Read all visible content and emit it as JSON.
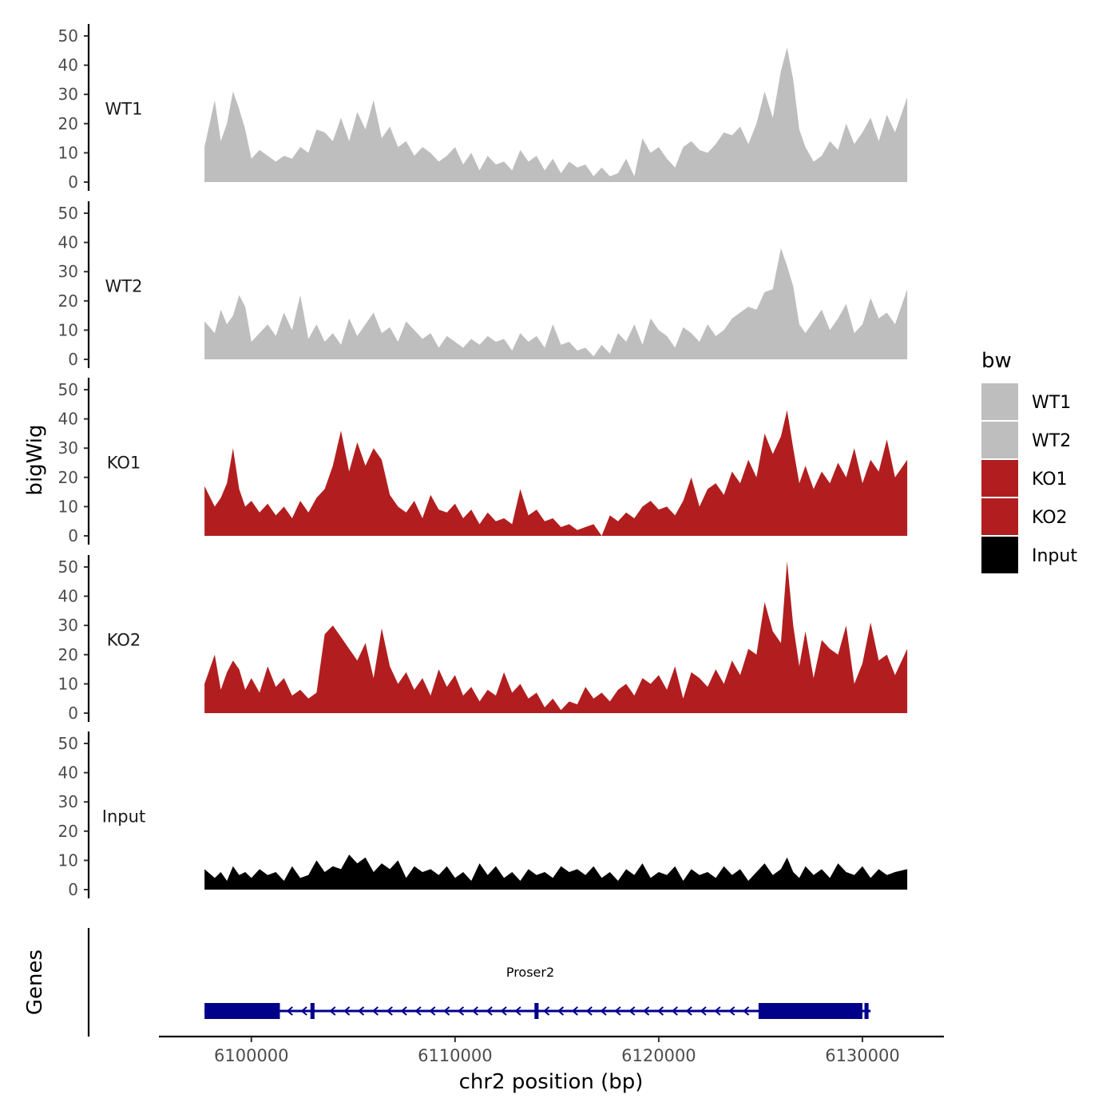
{
  "chart_data": {
    "type": "area",
    "title": "",
    "xlabel": "chr2 position (bp)",
    "ylabel": "bigWig",
    "genes_label": "Genes",
    "xlim": [
      6095500,
      6134000
    ],
    "x_ticks": [
      6100000,
      6110000,
      6120000,
      6130000
    ],
    "x_tick_labels": [
      "6100000",
      "6110000",
      "6120000",
      "6130000"
    ],
    "ylim": [
      0,
      53
    ],
    "y_ticks": [
      0,
      10,
      20,
      30,
      40,
      50
    ],
    "y_tick_labels": [
      "0",
      "10",
      "20",
      "30",
      "40",
      "50"
    ],
    "grid": false,
    "legend": {
      "title": "bw",
      "placement": "right",
      "entries": [
        {
          "label": "WT1",
          "color": "#bebebe"
        },
        {
          "label": "WT2",
          "color": "#bebebe"
        },
        {
          "label": "KO1",
          "color": "#b21e1f"
        },
        {
          "label": "KO2",
          "color": "#b21e1f"
        },
        {
          "label": "Input",
          "color": "#000000"
        }
      ]
    },
    "series": [
      {
        "name": "WT1",
        "color": "#bebebe",
        "x": [
          6097700,
          6098200,
          6098500,
          6098800,
          6099100,
          6099400,
          6099700,
          6100000,
          6100400,
          6100800,
          6101200,
          6101600,
          6102000,
          6102400,
          6102800,
          6103200,
          6103600,
          6104000,
          6104400,
          6104800,
          6105200,
          6105600,
          6106000,
          6106400,
          6106800,
          6107200,
          6107600,
          6108000,
          6108400,
          6108800,
          6109200,
          6109600,
          6110000,
          6110400,
          6110800,
          6111200,
          6111600,
          6112000,
          6112400,
          6112800,
          6113200,
          6113600,
          6114000,
          6114400,
          6114800,
          6115200,
          6115600,
          6116000,
          6116400,
          6116800,
          6117200,
          6117600,
          6118000,
          6118400,
          6118800,
          6119200,
          6119600,
          6120000,
          6120400,
          6120800,
          6121200,
          6121600,
          6122000,
          6122400,
          6122800,
          6123200,
          6123600,
          6124000,
          6124400,
          6124800,
          6125200,
          6125600,
          6126000,
          6126300,
          6126600,
          6126900,
          6127200,
          6127600,
          6128000,
          6128400,
          6128800,
          6129200,
          6129600,
          6130000,
          6130400,
          6130800,
          6131200,
          6131600,
          6132200
        ],
        "values": [
          12,
          28,
          14,
          20,
          31,
          25,
          18,
          8,
          11,
          9,
          7,
          9,
          8,
          12,
          10,
          18,
          17,
          14,
          22,
          14,
          24,
          18,
          28,
          15,
          19,
          12,
          14,
          9,
          12,
          10,
          7,
          9,
          12,
          6,
          10,
          4,
          9,
          6,
          7,
          4,
          11,
          7,
          9,
          4,
          8,
          3,
          7,
          5,
          6,
          2,
          5,
          2,
          3,
          8,
          2,
          15,
          10,
          12,
          8,
          5,
          12,
          14,
          11,
          10,
          13,
          17,
          16,
          19,
          13,
          20,
          31,
          22,
          38,
          46,
          35,
          18,
          12,
          7,
          9,
          14,
          11,
          20,
          13,
          17,
          22,
          14,
          23,
          17,
          29
        ]
      },
      {
        "name": "WT2",
        "color": "#bebebe",
        "x": [
          6097700,
          6098200,
          6098500,
          6098800,
          6099100,
          6099400,
          6099700,
          6100000,
          6100400,
          6100800,
          6101200,
          6101600,
          6102000,
          6102400,
          6102800,
          6103200,
          6103600,
          6104000,
          6104400,
          6104800,
          6105200,
          6105600,
          6106000,
          6106400,
          6106800,
          6107200,
          6107600,
          6108000,
          6108400,
          6108800,
          6109200,
          6109600,
          6110000,
          6110400,
          6110800,
          6111200,
          6111600,
          6112000,
          6112400,
          6112800,
          6113200,
          6113600,
          6114000,
          6114400,
          6114800,
          6115200,
          6115600,
          6116000,
          6116400,
          6116800,
          6117200,
          6117600,
          6118000,
          6118400,
          6118800,
          6119200,
          6119600,
          6120000,
          6120400,
          6120800,
          6121200,
          6121600,
          6122000,
          6122400,
          6122800,
          6123200,
          6123600,
          6124000,
          6124400,
          6124800,
          6125200,
          6125600,
          6126000,
          6126300,
          6126600,
          6126900,
          6127200,
          6127600,
          6128000,
          6128400,
          6128800,
          6129200,
          6129600,
          6130000,
          6130400,
          6130800,
          6131200,
          6131600,
          6132200
        ],
        "values": [
          13,
          9,
          17,
          12,
          15,
          22,
          18,
          6,
          9,
          12,
          8,
          16,
          10,
          22,
          7,
          12,
          6,
          9,
          5,
          14,
          8,
          12,
          16,
          9,
          11,
          6,
          13,
          10,
          7,
          9,
          4,
          8,
          6,
          4,
          7,
          5,
          8,
          6,
          7,
          3,
          9,
          6,
          8,
          4,
          12,
          5,
          6,
          3,
          4,
          1,
          5,
          2,
          9,
          6,
          12,
          5,
          14,
          10,
          8,
          4,
          11,
          9,
          6,
          12,
          8,
          10,
          14,
          16,
          18,
          17,
          23,
          24,
          38,
          32,
          25,
          12,
          9,
          13,
          17,
          10,
          14,
          19,
          9,
          12,
          21,
          14,
          16,
          12,
          24
        ]
      },
      {
        "name": "KO1",
        "color": "#b21e1f",
        "x": [
          6097700,
          6098200,
          6098500,
          6098800,
          6099100,
          6099400,
          6099700,
          6100000,
          6100400,
          6100800,
          6101200,
          6101600,
          6102000,
          6102400,
          6102800,
          6103200,
          6103600,
          6104000,
          6104400,
          6104800,
          6105200,
          6105600,
          6106000,
          6106400,
          6106800,
          6107200,
          6107600,
          6108000,
          6108400,
          6108800,
          6109200,
          6109600,
          6110000,
          6110400,
          6110800,
          6111200,
          6111600,
          6112000,
          6112400,
          6112800,
          6113200,
          6113600,
          6114000,
          6114400,
          6114800,
          6115200,
          6115600,
          6116000,
          6116400,
          6116800,
          6117200,
          6117600,
          6118000,
          6118400,
          6118800,
          6119200,
          6119600,
          6120000,
          6120400,
          6120800,
          6121200,
          6121600,
          6122000,
          6122400,
          6122800,
          6123200,
          6123600,
          6124000,
          6124400,
          6124800,
          6125200,
          6125600,
          6126000,
          6126300,
          6126600,
          6126900,
          6127200,
          6127600,
          6128000,
          6128400,
          6128800,
          6129200,
          6129600,
          6130000,
          6130400,
          6130800,
          6131200,
          6131600,
          6132200
        ],
        "values": [
          17,
          10,
          13,
          18,
          30,
          16,
          10,
          12,
          8,
          11,
          7,
          10,
          6,
          12,
          8,
          13,
          16,
          24,
          36,
          22,
          32,
          24,
          30,
          26,
          14,
          10,
          8,
          12,
          6,
          14,
          9,
          8,
          11,
          6,
          9,
          4,
          8,
          5,
          6,
          4,
          16,
          7,
          9,
          5,
          6,
          3,
          4,
          2,
          3,
          4,
          0,
          7,
          5,
          8,
          6,
          10,
          12,
          9,
          10,
          7,
          12,
          20,
          10,
          16,
          18,
          14,
          22,
          18,
          26,
          20,
          35,
          28,
          34,
          43,
          30,
          18,
          24,
          16,
          22,
          18,
          25,
          20,
          30,
          18,
          26,
          22,
          33,
          20,
          26
        ]
      },
      {
        "name": "KO2",
        "color": "#b21e1f",
        "x": [
          6097700,
          6098200,
          6098500,
          6098800,
          6099100,
          6099400,
          6099700,
          6100000,
          6100400,
          6100800,
          6101200,
          6101600,
          6102000,
          6102400,
          6102800,
          6103200,
          6103600,
          6104000,
          6104400,
          6104800,
          6105200,
          6105600,
          6106000,
          6106400,
          6106800,
          6107200,
          6107600,
          6108000,
          6108400,
          6108800,
          6109200,
          6109600,
          6110000,
          6110400,
          6110800,
          6111200,
          6111600,
          6112000,
          6112400,
          6112800,
          6113200,
          6113600,
          6114000,
          6114400,
          6114800,
          6115200,
          6115600,
          6116000,
          6116400,
          6116800,
          6117200,
          6117600,
          6118000,
          6118400,
          6118800,
          6119200,
          6119600,
          6120000,
          6120400,
          6120800,
          6121200,
          6121600,
          6122000,
          6122400,
          6122800,
          6123200,
          6123600,
          6124000,
          6124400,
          6124800,
          6125200,
          6125600,
          6126000,
          6126300,
          6126600,
          6126900,
          6127200,
          6127600,
          6128000,
          6128400,
          6128800,
          6129200,
          6129600,
          6130000,
          6130400,
          6130800,
          6131200,
          6131600,
          6132200
        ],
        "values": [
          10,
          20,
          8,
          14,
          18,
          15,
          8,
          12,
          7,
          16,
          9,
          12,
          6,
          8,
          5,
          7,
          27,
          30,
          26,
          22,
          18,
          24,
          12,
          29,
          16,
          10,
          14,
          8,
          12,
          6,
          15,
          9,
          13,
          6,
          9,
          4,
          8,
          6,
          14,
          7,
          10,
          5,
          7,
          2,
          5,
          1,
          4,
          3,
          9,
          5,
          7,
          4,
          8,
          10,
          6,
          12,
          10,
          13,
          8,
          16,
          5,
          14,
          12,
          9,
          15,
          10,
          18,
          13,
          22,
          20,
          38,
          28,
          24,
          52,
          30,
          16,
          28,
          12,
          25,
          22,
          20,
          30,
          10,
          17,
          31,
          18,
          20,
          13,
          22
        ]
      },
      {
        "name": "Input",
        "color": "#000000",
        "x": [
          6097700,
          6098200,
          6098500,
          6098800,
          6099100,
          6099400,
          6099700,
          6100000,
          6100400,
          6100800,
          6101200,
          6101600,
          6102000,
          6102400,
          6102800,
          6103200,
          6103600,
          6104000,
          6104400,
          6104800,
          6105200,
          6105600,
          6106000,
          6106400,
          6106800,
          6107200,
          6107600,
          6108000,
          6108400,
          6108800,
          6109200,
          6109600,
          6110000,
          6110400,
          6110800,
          6111200,
          6111600,
          6112000,
          6112400,
          6112800,
          6113200,
          6113600,
          6114000,
          6114400,
          6114800,
          6115200,
          6115600,
          6116000,
          6116400,
          6116800,
          6117200,
          6117600,
          6118000,
          6118400,
          6118800,
          6119200,
          6119600,
          6120000,
          6120400,
          6120800,
          6121200,
          6121600,
          6122000,
          6122400,
          6122800,
          6123200,
          6123600,
          6124000,
          6124400,
          6124800,
          6125200,
          6125600,
          6126000,
          6126300,
          6126600,
          6126900,
          6127200,
          6127600,
          6128000,
          6128400,
          6128800,
          6129200,
          6129600,
          6130000,
          6130400,
          6130800,
          6131200,
          6131600,
          6132200
        ],
        "values": [
          7,
          4,
          6,
          3,
          8,
          5,
          6,
          4,
          7,
          5,
          6,
          3,
          8,
          4,
          5,
          10,
          6,
          8,
          7,
          12,
          9,
          11,
          6,
          9,
          7,
          10,
          4,
          8,
          6,
          7,
          5,
          8,
          4,
          6,
          3,
          9,
          5,
          8,
          4,
          6,
          3,
          7,
          5,
          6,
          4,
          8,
          6,
          7,
          5,
          8,
          4,
          6,
          3,
          7,
          5,
          9,
          4,
          6,
          5,
          8,
          3,
          7,
          5,
          6,
          4,
          8,
          5,
          7,
          3,
          6,
          9,
          5,
          7,
          11,
          6,
          4,
          8,
          5,
          7,
          4,
          9,
          6,
          5,
          8,
          4,
          7,
          5,
          6,
          7
        ]
      }
    ],
    "gene": {
      "name": "Proser2",
      "strand": "-",
      "start": 6097700,
      "end": 6130400,
      "exons": [
        {
          "start": 6097700,
          "end": 6101400
        },
        {
          "start": 6102900,
          "end": 6103100
        },
        {
          "start": 6113900,
          "end": 6114100
        },
        {
          "start": 6124900,
          "end": 6130000
        },
        {
          "start": 6130100,
          "end": 6130300
        }
      ]
    }
  }
}
